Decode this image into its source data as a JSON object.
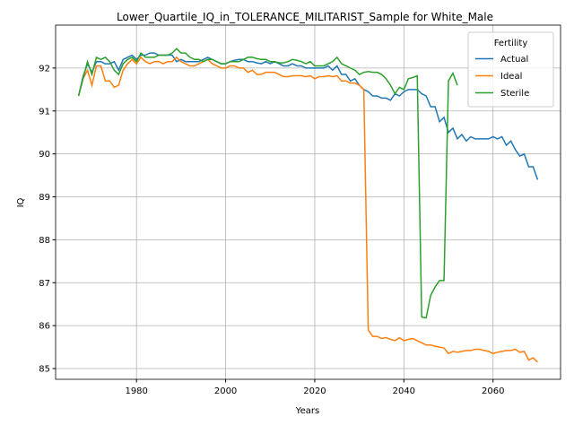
{
  "chart_data": {
    "type": "line",
    "title": "Lower_Quartile_IQ_in_TOLERANCE_MILITARIST_Sample for White_Male",
    "xlabel": "Years",
    "ylabel": "IQ",
    "legend_title": "Fertility",
    "legend": "upper right",
    "grid": true,
    "xlim": [
      1961.85,
      2075.15
    ],
    "ylim": [
      84.75,
      93.0
    ],
    "xticks": [
      1980,
      2000,
      2020,
      2040,
      2060
    ],
    "yticks": [
      85,
      86,
      87,
      88,
      89,
      90,
      91,
      92
    ],
    "x": [
      1967,
      1968,
      1969,
      1970,
      1971,
      1972,
      1973,
      1974,
      1975,
      1976,
      1977,
      1978,
      1979,
      1980,
      1981,
      1982,
      1983,
      1984,
      1985,
      1986,
      1987,
      1988,
      1989,
      1990,
      1991,
      1992,
      1993,
      1994,
      1995,
      1996,
      1997,
      1998,
      1999,
      2000,
      2001,
      2002,
      2003,
      2004,
      2005,
      2006,
      2007,
      2008,
      2009,
      2010,
      2011,
      2012,
      2013,
      2014,
      2015,
      2016,
      2017,
      2018,
      2019,
      2020,
      2021,
      2022,
      2023,
      2024,
      2025,
      2026,
      2027,
      2028,
      2029,
      2030,
      2031,
      2032,
      2033,
      2034,
      2035,
      2036,
      2037,
      2038,
      2039,
      2040,
      2041,
      2042,
      2043,
      2044,
      2045,
      2046,
      2047,
      2048,
      2049,
      2050,
      2051,
      2052,
      2053,
      2054,
      2055,
      2056,
      2057,
      2058,
      2059,
      2060,
      2061,
      2062,
      2063,
      2064,
      2065,
      2066,
      2067,
      2068,
      2069,
      2070
    ],
    "series": [
      {
        "name": "Actual",
        "color": "#1f77b4",
        "values": [
          91.35,
          91.8,
          92.1,
          91.9,
          92.15,
          92.15,
          92.1,
          92.1,
          92.15,
          91.95,
          92.2,
          92.25,
          92.3,
          92.2,
          92.3,
          92.3,
          92.35,
          92.35,
          92.3,
          92.3,
          92.3,
          92.3,
          92.15,
          92.2,
          92.15,
          92.15,
          92.15,
          92.15,
          92.2,
          92.25,
          92.2,
          92.15,
          92.1,
          92.1,
          92.15,
          92.18,
          92.2,
          92.2,
          92.15,
          92.15,
          92.12,
          92.1,
          92.15,
          92.1,
          92.15,
          92.1,
          92.05,
          92.05,
          92.1,
          92.05,
          92.05,
          92.0,
          92.0,
          92.0,
          92.0,
          92.0,
          92.05,
          91.95,
          92.05,
          91.85,
          91.85,
          91.7,
          91.75,
          91.6,
          91.5,
          91.45,
          91.35,
          91.35,
          91.3,
          91.3,
          91.25,
          91.4,
          91.35,
          91.45,
          91.5,
          91.5,
          91.5,
          91.4,
          91.35,
          91.1,
          91.1,
          90.75,
          90.85,
          90.5,
          90.6,
          90.35,
          90.45,
          90.3,
          90.4,
          90.35,
          90.35,
          90.35,
          90.35,
          90.4,
          90.35,
          90.4,
          90.2,
          90.3,
          90.1,
          89.95,
          90.0,
          89.7,
          89.7,
          89.4
        ]
      },
      {
        "name": "Ideal",
        "color": "#ff7f0e",
        "values": [
          91.35,
          91.75,
          91.95,
          91.6,
          92.05,
          92.05,
          91.7,
          91.7,
          91.55,
          91.6,
          91.95,
          92.1,
          92.2,
          92.1,
          92.25,
          92.15,
          92.1,
          92.15,
          92.15,
          92.1,
          92.15,
          92.15,
          92.25,
          92.15,
          92.1,
          92.05,
          92.05,
          92.1,
          92.15,
          92.2,
          92.1,
          92.05,
          92.0,
          92.0,
          92.05,
          92.05,
          92.0,
          92.0,
          91.9,
          91.95,
          91.85,
          91.85,
          91.9,
          91.9,
          91.9,
          91.85,
          91.8,
          91.8,
          91.82,
          91.82,
          91.82,
          91.8,
          91.82,
          91.75,
          91.8,
          91.8,
          91.82,
          91.8,
          91.82,
          91.7,
          91.7,
          91.65,
          91.65,
          91.6,
          91.5,
          85.9,
          85.75,
          85.75,
          85.7,
          85.72,
          85.68,
          85.65,
          85.72,
          85.65,
          85.68,
          85.7,
          85.65,
          85.6,
          85.55,
          85.55,
          85.52,
          85.5,
          85.48,
          85.35,
          85.4,
          85.38,
          85.4,
          85.42,
          85.42,
          85.45,
          85.45,
          85.42,
          85.4,
          85.35,
          85.38,
          85.4,
          85.42,
          85.42,
          85.45,
          85.38,
          85.4,
          85.2,
          85.25,
          85.15
        ]
      },
      {
        "name": "Sterile",
        "color": "#2ca02c",
        "values": [
          91.35,
          91.75,
          92.15,
          91.85,
          92.25,
          92.2,
          92.25,
          92.15,
          91.95,
          91.85,
          92.1,
          92.2,
          92.25,
          92.15,
          92.35,
          92.25,
          92.25,
          92.25,
          92.3,
          92.3,
          92.3,
          92.35,
          92.45,
          92.35,
          92.35,
          92.25,
          92.2,
          92.2,
          92.15,
          92.2,
          92.2,
          92.15,
          92.1,
          92.1,
          92.15,
          92.15,
          92.15,
          92.2,
          92.25,
          92.25,
          92.22,
          92.2,
          92.2,
          92.15,
          92.15,
          92.12,
          92.12,
          92.15,
          92.2,
          92.18,
          92.15,
          92.1,
          92.15,
          92.05,
          92.05,
          92.05,
          92.1,
          92.15,
          92.25,
          92.1,
          92.05,
          92.0,
          91.95,
          91.85,
          91.9,
          91.92,
          91.9,
          91.9,
          91.85,
          91.75,
          91.6,
          91.4,
          91.55,
          91.5,
          91.75,
          91.78,
          91.82,
          86.2,
          86.18,
          86.7,
          86.9,
          87.05,
          87.05,
          91.7,
          91.88,
          91.6,
          null,
          null,
          null,
          null,
          null,
          null,
          null,
          null,
          null,
          null,
          null,
          null,
          null,
          null,
          null,
          null,
          null,
          null
        ]
      }
    ]
  }
}
